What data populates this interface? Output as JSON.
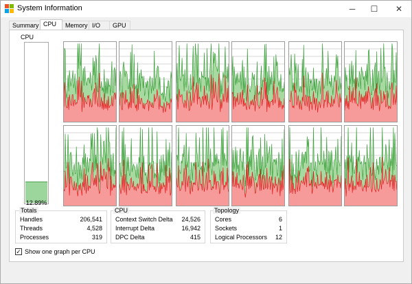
{
  "window": {
    "title": "System Information",
    "minimize_icon": "minimize-icon",
    "maximize_icon": "maximize-icon",
    "close_icon": "close-icon"
  },
  "tabs": [
    {
      "label": "Summary",
      "active": false
    },
    {
      "label": "CPU",
      "active": true
    },
    {
      "label": "Memory",
      "active": false
    },
    {
      "label": "I/O",
      "active": false
    },
    {
      "label": "GPU",
      "active": false
    }
  ],
  "cpu_overall": {
    "label": "CPU",
    "percent_text": "12.89%",
    "value_fraction": 0.1289
  },
  "graph_colors": {
    "kernel": "#e31b1b",
    "kernel_fill": "#f79a9a",
    "total": "#3a9f3a",
    "total_fill": "#a7d9a0"
  },
  "graph_count": 12,
  "totals": {
    "title": "Totals",
    "rows": [
      {
        "label": "Handles",
        "value": "206,541"
      },
      {
        "label": "Threads",
        "value": "4,528"
      },
      {
        "label": "Processes",
        "value": "319"
      }
    ]
  },
  "cpu_stats": {
    "title": "CPU",
    "rows": [
      {
        "label": "Context Switch Delta",
        "value": "24,526"
      },
      {
        "label": "Interrupt Delta",
        "value": "16,942"
      },
      {
        "label": "DPC Delta",
        "value": "415"
      }
    ]
  },
  "topology": {
    "title": "Topology",
    "rows": [
      {
        "label": "Cores",
        "value": "6"
      },
      {
        "label": "Sockets",
        "value": "1"
      },
      {
        "label": "Logical Processors",
        "value": "12"
      }
    ]
  },
  "options": {
    "one_graph_per_cpu_label": "Show one graph per CPU",
    "one_graph_per_cpu_checked": true
  }
}
